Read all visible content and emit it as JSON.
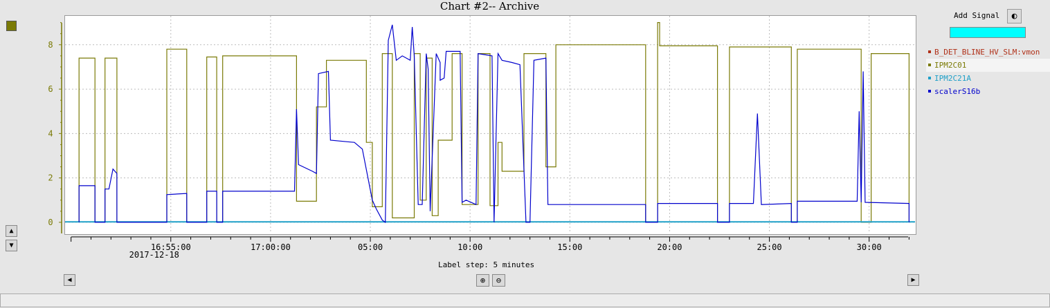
{
  "window": {
    "title": "Chart #2-- Archive"
  },
  "controls": {
    "add_signal_label": "Add Signal",
    "add_signal_icon": "binoculars-icon",
    "label_step": "Label step: 5 minutes",
    "zoom_in_icon": "zoom-in-icon",
    "zoom_out_icon": "zoom-out-icon",
    "scroll_left_icon": "arrow-left-icon",
    "scroll_right_icon": "arrow-right-icon",
    "move_up_icon": "arrow-up-icon",
    "move_down_icon": "arrow-down-icon"
  },
  "legend": [
    {
      "name": "B_DET_BLINE_HV_SLM:vmon",
      "color": "#b03018"
    },
    {
      "name": "IPM2C01",
      "color": "#7a7a05"
    },
    {
      "name": "IPM2C21A",
      "color": "#1fa0c8"
    },
    {
      "name": "scalerS16b",
      "color": "#0000cc"
    }
  ],
  "chart_data": {
    "type": "line",
    "title": "Chart #2-- Archive",
    "x_unit": "time (minutes after 16:50:00, 2017-12-18)",
    "x_ticks": [
      {
        "t": 5,
        "label": "16:55:00",
        "sub": "2017-12-18"
      },
      {
        "t": 10,
        "label": "17:00:00",
        "sub": ""
      },
      {
        "t": 15,
        "label": "05:00",
        "sub": ""
      },
      {
        "t": 20,
        "label": "10:00",
        "sub": ""
      },
      {
        "t": 25,
        "label": "15:00",
        "sub": ""
      },
      {
        "t": 30,
        "label": "20:00",
        "sub": ""
      },
      {
        "t": 35,
        "label": "25:00",
        "sub": ""
      },
      {
        "t": 40,
        "label": "30:00",
        "sub": ""
      }
    ],
    "xlim": [
      -0.3,
      42.3
    ],
    "ylim": [
      -0.5,
      9.3
    ],
    "y_ticks": [
      0,
      2,
      4,
      6,
      8
    ],
    "grid": true,
    "series": [
      {
        "name": "IPM2C01",
        "color": "#7a7a05",
        "points": [
          [
            0.4,
            0
          ],
          [
            0.4,
            7.4
          ],
          [
            1.2,
            7.4
          ],
          [
            1.2,
            0
          ],
          [
            1.7,
            0
          ],
          [
            1.7,
            7.4
          ],
          [
            2.3,
            7.4
          ],
          [
            2.3,
            0
          ],
          [
            4.8,
            0
          ],
          [
            4.8,
            7.8
          ],
          [
            5.8,
            7.8
          ],
          [
            5.8,
            0
          ],
          [
            6.8,
            0
          ],
          [
            6.8,
            7.45
          ],
          [
            7.3,
            7.45
          ],
          [
            7.3,
            0
          ],
          [
            7.6,
            0
          ],
          [
            7.6,
            7.5
          ],
          [
            11.3,
            7.5
          ],
          [
            11.3,
            0.95
          ],
          [
            12.3,
            0.95
          ],
          [
            12.3,
            5.2
          ],
          [
            12.8,
            5.2
          ],
          [
            12.8,
            7.3
          ],
          [
            14.8,
            7.3
          ],
          [
            14.8,
            3.6
          ],
          [
            15.1,
            3.6
          ],
          [
            15.1,
            0.7
          ],
          [
            15.6,
            0.7
          ],
          [
            15.6,
            7.6
          ],
          [
            16.1,
            7.6
          ],
          [
            16.1,
            0.2
          ],
          [
            17.2,
            0.2
          ],
          [
            17.2,
            7.6
          ],
          [
            17.5,
            7.6
          ],
          [
            17.5,
            1.0
          ],
          [
            17.8,
            1.0
          ],
          [
            17.8,
            7.4
          ],
          [
            18.1,
            7.4
          ],
          [
            18.1,
            0.3
          ],
          [
            18.4,
            0.3
          ],
          [
            18.4,
            3.7
          ],
          [
            19.1,
            3.7
          ],
          [
            19.1,
            7.6
          ],
          [
            19.6,
            7.6
          ],
          [
            19.6,
            0.8
          ],
          [
            20.4,
            0.8
          ],
          [
            20.4,
            7.6
          ],
          [
            21.0,
            7.6
          ],
          [
            21.0,
            0.75
          ],
          [
            21.4,
            0.75
          ],
          [
            21.4,
            3.6
          ],
          [
            21.6,
            3.6
          ],
          [
            21.6,
            2.3
          ],
          [
            22.7,
            2.3
          ],
          [
            22.7,
            7.6
          ],
          [
            23.8,
            7.6
          ],
          [
            23.8,
            2.5
          ],
          [
            24.3,
            2.5
          ],
          [
            24.3,
            8.0
          ],
          [
            28.8,
            8.0
          ],
          [
            28.8,
            0
          ],
          [
            29.4,
            0
          ],
          [
            29.4,
            9.0
          ],
          [
            29.5,
            9.0
          ],
          [
            29.5,
            7.95
          ],
          [
            32.4,
            7.95
          ],
          [
            32.4,
            0
          ],
          [
            33.0,
            0
          ],
          [
            33.0,
            7.9
          ],
          [
            36.1,
            7.9
          ],
          [
            36.1,
            0
          ],
          [
            36.4,
            0
          ],
          [
            36.4,
            7.8
          ],
          [
            39.6,
            7.8
          ],
          [
            39.6,
            0
          ],
          [
            40.1,
            0
          ],
          [
            40.1,
            7.6
          ],
          [
            42.0,
            7.6
          ],
          [
            42.0,
            0
          ]
        ]
      },
      {
        "name": "IPM2C21A",
        "color": "#1fa0c8",
        "points": [
          [
            -0.3,
            0.02
          ],
          [
            42.3,
            0.02
          ]
        ]
      },
      {
        "name": "scalerS16b",
        "color": "#0000cc",
        "points": [
          [
            0.4,
            0
          ],
          [
            0.4,
            1.65
          ],
          [
            1.2,
            1.65
          ],
          [
            1.2,
            0
          ],
          [
            1.7,
            0
          ],
          [
            1.7,
            1.5
          ],
          [
            1.9,
            1.5
          ],
          [
            2.1,
            2.4
          ],
          [
            2.3,
            2.2
          ],
          [
            2.3,
            0
          ],
          [
            4.8,
            0
          ],
          [
            4.8,
            1.25
          ],
          [
            5.8,
            1.3
          ],
          [
            5.8,
            0
          ],
          [
            6.8,
            0
          ],
          [
            6.8,
            1.4
          ],
          [
            7.3,
            1.4
          ],
          [
            7.3,
            0
          ],
          [
            7.6,
            0
          ],
          [
            7.6,
            1.4
          ],
          [
            11.2,
            1.4
          ],
          [
            11.3,
            5.1
          ],
          [
            11.4,
            2.6
          ],
          [
            12.1,
            2.3
          ],
          [
            12.3,
            2.2
          ],
          [
            12.4,
            6.7
          ],
          [
            12.9,
            6.8
          ],
          [
            13.0,
            3.7
          ],
          [
            14.2,
            3.6
          ],
          [
            14.6,
            3.3
          ],
          [
            15.1,
            1.0
          ],
          [
            15.3,
            0.6
          ],
          [
            15.6,
            0.1
          ],
          [
            15.75,
            0
          ],
          [
            15.9,
            8.2
          ],
          [
            16.1,
            8.9
          ],
          [
            16.3,
            7.3
          ],
          [
            16.6,
            7.5
          ],
          [
            17.0,
            7.3
          ],
          [
            17.1,
            8.8
          ],
          [
            17.2,
            7.5
          ],
          [
            17.4,
            0.8
          ],
          [
            17.6,
            0.8
          ],
          [
            17.8,
            7.6
          ],
          [
            17.9,
            6.9
          ],
          [
            18.0,
            0.5
          ],
          [
            18.3,
            7.6
          ],
          [
            18.5,
            7.2
          ],
          [
            18.5,
            6.4
          ],
          [
            18.7,
            6.5
          ],
          [
            18.8,
            7.7
          ],
          [
            19.5,
            7.7
          ],
          [
            19.6,
            0.9
          ],
          [
            19.8,
            1.0
          ],
          [
            20.3,
            0.8
          ],
          [
            20.4,
            7.6
          ],
          [
            21.1,
            7.5
          ],
          [
            21.2,
            0
          ],
          [
            21.4,
            7.6
          ],
          [
            21.6,
            7.3
          ],
          [
            22.1,
            7.2
          ],
          [
            22.5,
            7.1
          ],
          [
            22.8,
            0
          ],
          [
            23.0,
            0
          ],
          [
            23.2,
            7.3
          ],
          [
            23.8,
            7.4
          ],
          [
            23.9,
            0.8
          ],
          [
            28.8,
            0.8
          ],
          [
            28.8,
            0
          ],
          [
            29.4,
            0
          ],
          [
            29.4,
            0.85
          ],
          [
            32.4,
            0.85
          ],
          [
            32.4,
            0
          ],
          [
            33.0,
            0
          ],
          [
            33.0,
            0.85
          ],
          [
            34.2,
            0.85
          ],
          [
            34.4,
            4.9
          ],
          [
            34.6,
            0.8
          ],
          [
            36.1,
            0.85
          ],
          [
            36.1,
            0
          ],
          [
            36.4,
            0
          ],
          [
            36.4,
            0.95
          ],
          [
            39.4,
            0.95
          ],
          [
            39.5,
            5.0
          ],
          [
            39.6,
            0.9
          ],
          [
            39.7,
            6.8
          ],
          [
            39.8,
            0.9
          ],
          [
            42.0,
            0.85
          ],
          [
            42.0,
            0
          ]
        ]
      }
    ]
  }
}
